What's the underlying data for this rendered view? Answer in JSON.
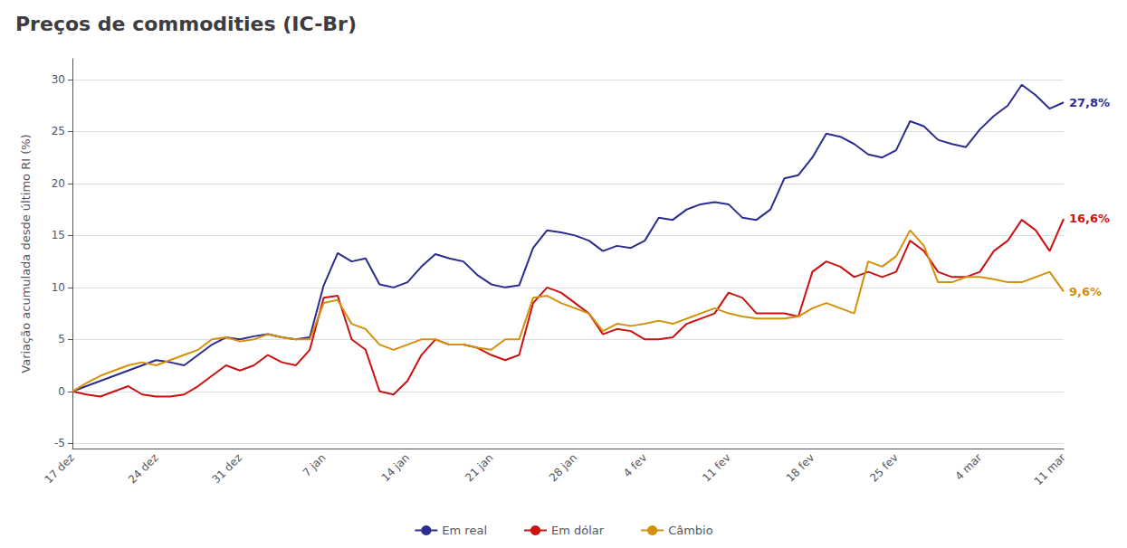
{
  "chart_data": {
    "type": "line",
    "title": "Preços de commodities (IC-Br)",
    "ylabel": "Variação acumulada desde último RI (%)",
    "categories": [
      "17 dez",
      null,
      null,
      null,
      null,
      null,
      "24 dez",
      null,
      null,
      null,
      null,
      null,
      "31 dez",
      null,
      null,
      null,
      null,
      null,
      "7 jan",
      null,
      null,
      null,
      null,
      null,
      "14 jan",
      null,
      null,
      null,
      null,
      null,
      "21 jan",
      null,
      null,
      null,
      null,
      null,
      "28 jan",
      null,
      null,
      null,
      null,
      "4 fev",
      null,
      null,
      null,
      null,
      null,
      "11 fev",
      null,
      null,
      null,
      null,
      null,
      "18 fev",
      null,
      null,
      null,
      null,
      null,
      "25 fev",
      null,
      null,
      null,
      null,
      null,
      "4 mar",
      null,
      null,
      null,
      null,
      null,
      "11 mar"
    ],
    "series": [
      {
        "name": "Em real",
        "color": "#2b2d8e",
        "values": [
          0.0,
          0.5,
          1.0,
          1.5,
          2.0,
          2.5,
          3.0,
          2.8,
          2.5,
          3.5,
          4.5,
          5.2,
          5.0,
          5.3,
          5.5,
          5.2,
          5.0,
          5.2,
          10.2,
          13.3,
          12.5,
          12.8,
          10.3,
          10.0,
          10.5,
          12.0,
          13.2,
          12.8,
          12.5,
          11.2,
          10.3,
          10.0,
          10.2,
          13.8,
          15.5,
          15.3,
          15.0,
          14.5,
          13.5,
          14.0,
          13.8,
          14.5,
          16.7,
          16.5,
          17.5,
          18.0,
          18.2,
          18.0,
          16.7,
          16.5,
          17.5,
          20.5,
          20.8,
          22.5,
          24.8,
          24.5,
          23.8,
          22.8,
          22.5,
          23.2,
          26.0,
          25.5,
          24.2,
          23.8,
          23.5,
          25.2,
          26.5,
          27.5,
          29.5,
          28.5,
          27.2,
          27.8
        ]
      },
      {
        "name": "Em dólar",
        "color": "#cc1111",
        "values": [
          0.0,
          -0.3,
          -0.5,
          0.0,
          0.5,
          -0.3,
          -0.5,
          -0.5,
          -0.3,
          0.5,
          1.5,
          2.5,
          2.0,
          2.5,
          3.5,
          2.8,
          2.5,
          4.0,
          9.0,
          9.2,
          5.0,
          4.0,
          0.0,
          -0.3,
          1.0,
          3.5,
          5.0,
          4.5,
          4.5,
          4.2,
          3.5,
          3.0,
          3.5,
          8.5,
          10.0,
          9.5,
          8.5,
          7.5,
          5.5,
          6.0,
          5.8,
          5.0,
          5.0,
          5.2,
          6.5,
          7.0,
          7.5,
          9.5,
          9.0,
          7.5,
          7.5,
          7.5,
          7.2,
          11.5,
          12.5,
          12.0,
          11.0,
          11.5,
          11.0,
          11.5,
          14.5,
          13.5,
          11.5,
          11.0,
          11.0,
          11.5,
          13.5,
          14.5,
          16.5,
          15.5,
          13.5,
          16.6
        ]
      },
      {
        "name": "Câmbio",
        "color": "#d4900a",
        "values": [
          0.0,
          0.8,
          1.5,
          2.0,
          2.5,
          2.8,
          2.5,
          3.0,
          3.5,
          4.0,
          5.0,
          5.2,
          4.8,
          5.0,
          5.5,
          5.2,
          5.0,
          5.0,
          8.5,
          8.8,
          6.5,
          6.0,
          4.5,
          4.0,
          4.5,
          5.0,
          5.0,
          4.5,
          4.5,
          4.2,
          4.0,
          5.0,
          5.0,
          9.0,
          9.2,
          8.5,
          8.0,
          7.5,
          5.8,
          6.5,
          6.3,
          6.5,
          6.8,
          6.5,
          7.0,
          7.5,
          8.0,
          7.5,
          7.2,
          7.0,
          7.0,
          7.0,
          7.2,
          8.0,
          8.5,
          8.0,
          7.5,
          12.5,
          12.0,
          13.0,
          15.5,
          14.0,
          10.5,
          10.5,
          11.0,
          11.0,
          10.8,
          10.5,
          10.5,
          11.0,
          11.5,
          9.6
        ]
      }
    ],
    "annotations": [
      {
        "text": "27,8%",
        "series": "Em real"
      },
      {
        "text": "16,6%",
        "series": "Em dólar"
      },
      {
        "text": "9,6%",
        "series": "Câmbio"
      }
    ],
    "ylim": [
      -5.5,
      32
    ],
    "yticks": [
      -5,
      0,
      5,
      10,
      15,
      20,
      25,
      30
    ],
    "grid": true,
    "legend": "bottom"
  }
}
